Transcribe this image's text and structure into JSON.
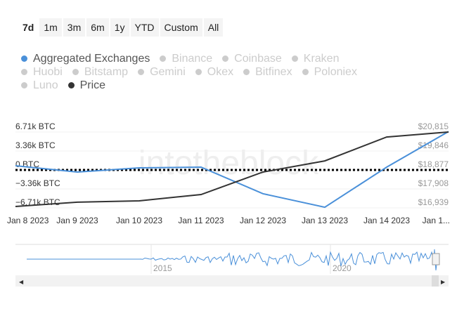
{
  "range_buttons": [
    "7d",
    "1m",
    "3m",
    "6m",
    "1y",
    "YTD",
    "Custom",
    "All"
  ],
  "active_range": "7d",
  "legend": [
    {
      "label": "Aggregated Exchanges",
      "active": true,
      "color": "#4a90d9"
    },
    {
      "label": "Binance",
      "active": false
    },
    {
      "label": "Coinbase",
      "active": false
    },
    {
      "label": "Kraken",
      "active": false
    },
    {
      "label": "Huobi",
      "active": false
    },
    {
      "label": "Bitstamp",
      "active": false
    },
    {
      "label": "Gemini",
      "active": false
    },
    {
      "label": "Okex",
      "active": false
    },
    {
      "label": "Bitfinex",
      "active": false
    },
    {
      "label": "Poloniex",
      "active": false
    },
    {
      "label": "Luno",
      "active": false
    },
    {
      "label": "Price",
      "active": true,
      "color": "#333333"
    }
  ],
  "watermark": "intotheblock",
  "chart_data": {
    "type": "line",
    "categories": [
      "Jan 8 2023",
      "Jan 9 2023",
      "Jan 10 2023",
      "Jan 11 2023",
      "Jan 12 2023",
      "Jan 13 2023",
      "Jan 14 2023",
      "Jan 1..."
    ],
    "left_ticks": [
      "6.71k BTC",
      "3.36k BTC",
      "0 BTC",
      "−3.36k BTC",
      "−6.71k BTC"
    ],
    "right_ticks": [
      "$20,815",
      "$19,846",
      "$18,877",
      "$17,908",
      "$16,939"
    ],
    "ylim_left": [
      -6710,
      6710
    ],
    "ylim_right": [
      16939,
      20815
    ],
    "series": [
      {
        "name": "Aggregated Exchanges",
        "axis": "left",
        "color": "#4a90d9",
        "values": [
          750,
          -370,
          370,
          500,
          -4200,
          -6600,
          500,
          6800
        ]
      },
      {
        "name": "Price",
        "axis": "right",
        "color": "#333333",
        "values": [
          17010,
          17230,
          17300,
          17620,
          18770,
          19340,
          20560,
          20815
        ]
      }
    ],
    "zero_line": "dotted",
    "navigator_labels": [
      "2015",
      "2020"
    ]
  }
}
